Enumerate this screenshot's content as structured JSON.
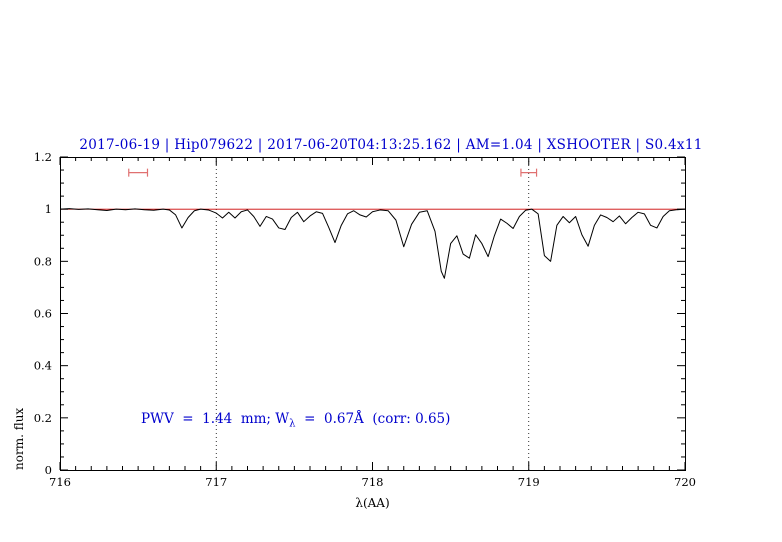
{
  "title": "2017-06-19 | Hip079622 | 2017-06-20T04:13:25.162 | AM=1.04 | XSHOOTER | S0.4x11",
  "annotation": {
    "part1": "PWV  =  1.44  mm; W",
    "sub": "λ",
    "part2": "  =  0.67Å  (corr: 0.65)"
  },
  "colors": {
    "title": "#0000cd",
    "annotation": "#0000cd",
    "spectrum": "#000000",
    "continuum": "#cc0000",
    "range_marker": "#e07070",
    "axis": "#000000"
  },
  "chart_data": {
    "type": "line",
    "title": "2017-06-19 | Hip079622 | 2017-06-20T04:13:25.162 | AM=1.04 | XSHOOTER | S0.4x11",
    "xlabel": "λ(AA)",
    "ylabel": "norm. flux",
    "xlim": [
      716,
      720
    ],
    "ylim": [
      0,
      1.2
    ],
    "grid": false,
    "x_ticks": [
      716,
      717,
      718,
      719,
      720
    ],
    "x_tick_labels": [
      "716",
      "717",
      "718",
      "719",
      "720"
    ],
    "y_ticks": [
      0,
      0.2,
      0.4,
      0.6,
      0.8,
      1,
      1.2
    ],
    "y_tick_labels": [
      "0",
      "0.2",
      "0.4",
      "0.6",
      "0.8",
      "1",
      "1.2"
    ],
    "x_minor_step": 0.1,
    "y_minor_step": 0.05,
    "dotted_vlines": [
      717,
      719
    ],
    "continuum_level": 1.0,
    "range_markers": [
      {
        "x1": 716.44,
        "x2": 716.56,
        "y": 1.14
      },
      {
        "x1": 718.95,
        "x2": 719.05,
        "y": 1.14
      }
    ],
    "pwv_annotation": "PWV = 1.44 mm; Wλ = 0.67Å (corr: 0.65)",
    "series": [
      {
        "name": "normalized-spectrum",
        "color": "#000000",
        "points": [
          [
            716.0,
            1.0
          ],
          [
            716.06,
            1.002
          ],
          [
            716.12,
            0.999
          ],
          [
            716.18,
            1.001
          ],
          [
            716.24,
            0.998
          ],
          [
            716.3,
            0.995
          ],
          [
            716.36,
            1.0
          ],
          [
            716.42,
            0.998
          ],
          [
            716.48,
            1.001
          ],
          [
            716.54,
            0.998
          ],
          [
            716.6,
            0.996
          ],
          [
            716.66,
            1.0
          ],
          [
            716.7,
            0.997
          ],
          [
            716.74,
            0.978
          ],
          [
            716.78,
            0.928
          ],
          [
            716.82,
            0.968
          ],
          [
            716.86,
            0.994
          ],
          [
            716.9,
            1.0
          ],
          [
            716.95,
            0.997
          ],
          [
            717.0,
            0.985
          ],
          [
            717.04,
            0.966
          ],
          [
            717.08,
            0.988
          ],
          [
            717.12,
            0.966
          ],
          [
            717.16,
            0.99
          ],
          [
            717.2,
            0.997
          ],
          [
            717.24,
            0.972
          ],
          [
            717.28,
            0.934
          ],
          [
            717.32,
            0.972
          ],
          [
            717.36,
            0.962
          ],
          [
            717.4,
            0.928
          ],
          [
            717.44,
            0.922
          ],
          [
            717.48,
            0.968
          ],
          [
            717.52,
            0.988
          ],
          [
            717.56,
            0.952
          ],
          [
            717.6,
            0.974
          ],
          [
            717.64,
            0.99
          ],
          [
            717.68,
            0.984
          ],
          [
            717.72,
            0.93
          ],
          [
            717.76,
            0.872
          ],
          [
            717.8,
            0.938
          ],
          [
            717.84,
            0.982
          ],
          [
            717.88,
            0.994
          ],
          [
            717.92,
            0.978
          ],
          [
            717.96,
            0.97
          ],
          [
            718.0,
            0.99
          ],
          [
            718.05,
            0.997
          ],
          [
            718.1,
            0.994
          ],
          [
            718.15,
            0.958
          ],
          [
            718.2,
            0.856
          ],
          [
            718.25,
            0.942
          ],
          [
            718.3,
            0.988
          ],
          [
            718.35,
            0.994
          ],
          [
            718.4,
            0.915
          ],
          [
            718.44,
            0.762
          ],
          [
            718.46,
            0.735
          ],
          [
            718.5,
            0.868
          ],
          [
            718.54,
            0.898
          ],
          [
            718.58,
            0.828
          ],
          [
            718.62,
            0.812
          ],
          [
            718.66,
            0.902
          ],
          [
            718.7,
            0.868
          ],
          [
            718.74,
            0.818
          ],
          [
            718.78,
            0.898
          ],
          [
            718.82,
            0.962
          ],
          [
            718.86,
            0.946
          ],
          [
            718.9,
            0.926
          ],
          [
            718.94,
            0.972
          ],
          [
            718.98,
            0.996
          ],
          [
            719.02,
            1.0
          ],
          [
            719.06,
            0.982
          ],
          [
            719.1,
            0.822
          ],
          [
            719.14,
            0.8
          ],
          [
            719.18,
            0.938
          ],
          [
            719.22,
            0.972
          ],
          [
            719.26,
            0.948
          ],
          [
            719.3,
            0.972
          ],
          [
            719.34,
            0.902
          ],
          [
            719.38,
            0.858
          ],
          [
            719.42,
            0.938
          ],
          [
            719.46,
            0.978
          ],
          [
            719.5,
            0.968
          ],
          [
            719.54,
            0.952
          ],
          [
            719.58,
            0.974
          ],
          [
            719.62,
            0.944
          ],
          [
            719.66,
            0.968
          ],
          [
            719.7,
            0.988
          ],
          [
            719.74,
            0.982
          ],
          [
            719.78,
            0.938
          ],
          [
            719.82,
            0.928
          ],
          [
            719.86,
            0.972
          ],
          [
            719.9,
            0.994
          ],
          [
            719.95,
            0.998
          ],
          [
            720.0,
            1.0
          ]
        ]
      }
    ]
  }
}
